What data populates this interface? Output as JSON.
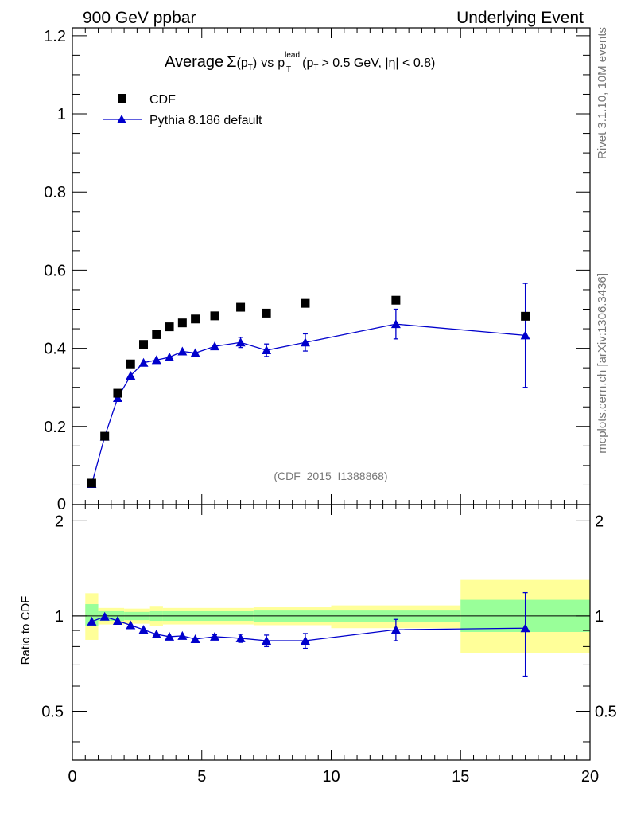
{
  "header": {
    "left": "900 GeV ppbar",
    "right": "Underlying Event"
  },
  "side_labels": {
    "rivet": "Rivet 3.1.10,  10M events",
    "mcplots": "mcplots.cern.ch [arXiv:1306.3436]"
  },
  "colors": {
    "mc": "#0000cc",
    "band_outer": "#ffff99",
    "band_inner": "#99ff99",
    "data": "#000000"
  },
  "chart_data": [
    {
      "type": "scatter",
      "title_parts": {
        "prefix": "Average",
        "sigma": "Σ",
        "pt_open": "(p",
        "pt_sub": "T",
        "pt_close": ")",
        "vs": "vs",
        "p": "p",
        "sup": "lead",
        "sub": "T",
        "cut_open": "(p",
        "cut_sub": "T",
        "cut_rest": "> 0.5 GeV, |η| < 0.8)"
      },
      "watermark": "(CDF_2015_I1388868)",
      "xlim": [
        0,
        20
      ],
      "ylim": [
        0,
        1.22
      ],
      "yticks": [
        0.2,
        0.4,
        0.6,
        0.8,
        1.0,
        1.2
      ],
      "ytick_labels": [
        "0.2",
        "0.4",
        "0.6",
        "0.8",
        "1",
        "1.2"
      ],
      "ytick_zero_label": "0",
      "legend": {
        "data_label": "CDF",
        "mc_label": "Pythia 8.186 default",
        "position": "top-left"
      },
      "series": [
        {
          "name": "CDF",
          "style": "black-square",
          "x": [
            0.75,
            1.25,
            1.75,
            2.25,
            2.75,
            3.25,
            3.75,
            4.25,
            4.75,
            5.5,
            6.5,
            7.5,
            9.0,
            12.5,
            17.5
          ],
          "y": [
            0.055,
            0.175,
            0.285,
            0.36,
            0.41,
            0.435,
            0.455,
            0.465,
            0.475,
            0.483,
            0.505,
            0.49,
            0.515,
            0.523,
            0.482
          ]
        },
        {
          "name": "Pythia 8.186 default",
          "style": "blue-triangle-line",
          "x": [
            0.75,
            1.25,
            1.75,
            2.25,
            2.75,
            3.25,
            3.75,
            4.25,
            4.75,
            5.5,
            6.5,
            7.5,
            9.0,
            12.5,
            17.5
          ],
          "y": [
            0.053,
            0.174,
            0.273,
            0.33,
            0.363,
            0.37,
            0.377,
            0.392,
            0.388,
            0.405,
            0.415,
            0.395,
            0.415,
            0.462,
            0.433
          ],
          "yerr": [
            0.002,
            0.003,
            0.004,
            0.004,
            0.004,
            0.004,
            0.005,
            0.005,
            0.005,
            0.006,
            0.013,
            0.016,
            0.022,
            0.038,
            0.133
          ]
        }
      ]
    },
    {
      "type": "scatter",
      "ylabel": "Ratio to CDF",
      "xlabel_ticks": [
        "0",
        "5",
        "10",
        "15",
        "20"
      ],
      "xticks": [
        0,
        5,
        10,
        15,
        20
      ],
      "xlim": [
        0,
        20
      ],
      "ylim": [
        0.35,
        2.25
      ],
      "yticks": [
        0.5,
        1,
        2
      ],
      "ytick_labels": [
        "0.5",
        "1",
        "2"
      ],
      "reference_line": 1.0,
      "bands": [
        {
          "x0": 0.5,
          "x1": 1.0,
          "inner_lo": 0.93,
          "inner_hi": 1.09,
          "outer_lo": 0.84,
          "outer_hi": 1.18
        },
        {
          "x0": 1.0,
          "x1": 2.0,
          "inner_lo": 0.965,
          "inner_hi": 1.035,
          "outer_lo": 0.94,
          "outer_hi": 1.06
        },
        {
          "x0": 2.0,
          "x1": 3.0,
          "inner_lo": 0.97,
          "inner_hi": 1.03,
          "outer_lo": 0.945,
          "outer_hi": 1.055
        },
        {
          "x0": 3.0,
          "x1": 3.5,
          "inner_lo": 0.965,
          "inner_hi": 1.035,
          "outer_lo": 0.93,
          "outer_hi": 1.07
        },
        {
          "x0": 3.5,
          "x1": 7.0,
          "inner_lo": 0.965,
          "inner_hi": 1.035,
          "outer_lo": 0.94,
          "outer_hi": 1.06
        },
        {
          "x0": 7.0,
          "x1": 10.0,
          "inner_lo": 0.955,
          "inner_hi": 1.04,
          "outer_lo": 0.935,
          "outer_hi": 1.065
        },
        {
          "x0": 10.0,
          "x1": 15.0,
          "inner_lo": 0.955,
          "inner_hi": 1.04,
          "outer_lo": 0.915,
          "outer_hi": 1.08
        },
        {
          "x0": 15.0,
          "x1": 20.0,
          "inner_lo": 0.89,
          "inner_hi": 1.125,
          "outer_lo": 0.765,
          "outer_hi": 1.3
        }
      ],
      "series": [
        {
          "name": "Pythia 8.186 default / CDF",
          "style": "blue-triangle-line",
          "x": [
            0.75,
            1.25,
            1.75,
            2.25,
            2.75,
            3.25,
            3.75,
            4.25,
            4.75,
            5.5,
            6.5,
            7.5,
            9.0,
            12.5,
            17.5
          ],
          "y": [
            0.96,
            0.995,
            0.965,
            0.935,
            0.905,
            0.875,
            0.86,
            0.865,
            0.845,
            0.86,
            0.85,
            0.835,
            0.835,
            0.905,
            0.915
          ],
          "yerr": [
            0.01,
            0.01,
            0.01,
            0.01,
            0.01,
            0.01,
            0.01,
            0.01,
            0.01,
            0.013,
            0.025,
            0.035,
            0.045,
            0.07,
            0.27
          ]
        }
      ]
    }
  ]
}
